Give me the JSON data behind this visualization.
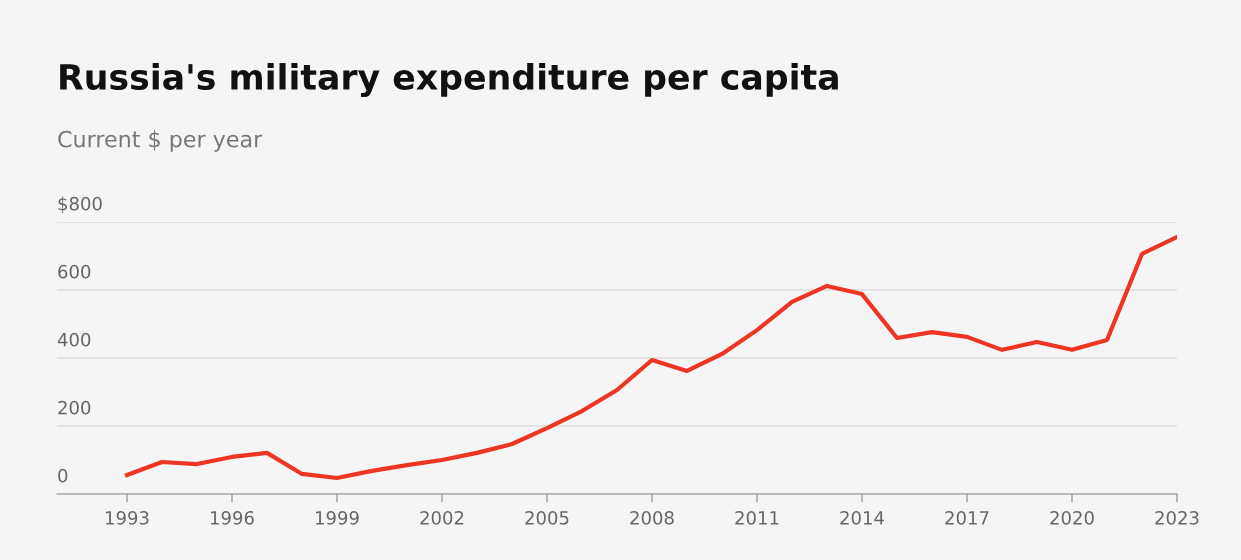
{
  "chart_data": {
    "type": "line",
    "title": "Russia's military expenditure per capita",
    "subtitle": "Current $ per year",
    "x": [
      1993,
      1994,
      1995,
      1996,
      1997,
      1998,
      1999,
      2000,
      2001,
      2002,
      2003,
      2004,
      2005,
      2006,
      2007,
      2008,
      2009,
      2010,
      2011,
      2012,
      2013,
      2014,
      2015,
      2016,
      2017,
      2018,
      2019,
      2020,
      2021,
      2022,
      2023
    ],
    "series": [
      {
        "color": "#ee3524",
        "values": [
          56,
          94,
          88,
          109,
          121,
          59,
          47,
          68,
          85,
          100,
          121,
          147,
          194,
          244,
          306,
          394,
          362,
          412,
          482,
          565,
          612,
          588,
          459,
          476,
          462,
          424,
          447,
          424,
          453,
          706,
          756
        ]
      }
    ],
    "xlim": [
      1991,
      2023
    ],
    "xticks": [
      1993,
      1996,
      1999,
      2002,
      2005,
      2008,
      2011,
      2014,
      2017,
      2020,
      2023
    ],
    "ylim": [
      0,
      800
    ],
    "yticks": [
      0,
      200,
      400,
      600,
      {
        "value": 800,
        "label": "$800"
      }
    ],
    "grid": "y",
    "marker": "none",
    "line_style": "solid"
  }
}
